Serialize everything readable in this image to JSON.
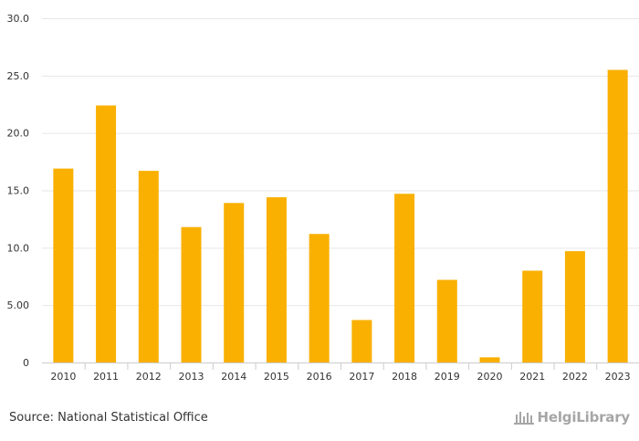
{
  "chart_data": {
    "type": "bar",
    "categories": [
      "2010",
      "2011",
      "2012",
      "2013",
      "2014",
      "2015",
      "2016",
      "2017",
      "2018",
      "2019",
      "2020",
      "2021",
      "2022",
      "2023"
    ],
    "values": [
      16.9,
      22.4,
      16.7,
      11.8,
      13.9,
      14.4,
      11.2,
      3.7,
      14.7,
      7.2,
      0.45,
      8.0,
      9.7,
      25.5
    ],
    "y_ticks": [
      {
        "value": 0,
        "label": "0"
      },
      {
        "value": 5,
        "label": "5.00"
      },
      {
        "value": 10,
        "label": "10.0"
      },
      {
        "value": 15,
        "label": "15.0"
      },
      {
        "value": 20,
        "label": "20.0"
      },
      {
        "value": 25,
        "label": "25.0"
      },
      {
        "value": 30,
        "label": "30.0"
      }
    ],
    "ylim": [
      0,
      30
    ],
    "title": "",
    "xlabel": "",
    "ylabel": "",
    "grid": true,
    "bar_color": "#f9b000"
  },
  "footer": {
    "source": "Source: National Statistical Office",
    "brand": "HelgiLibrary"
  },
  "colors": {
    "grid": "#e6e6e6",
    "axis": "#cccccc",
    "brand": "#a6a6a6"
  }
}
